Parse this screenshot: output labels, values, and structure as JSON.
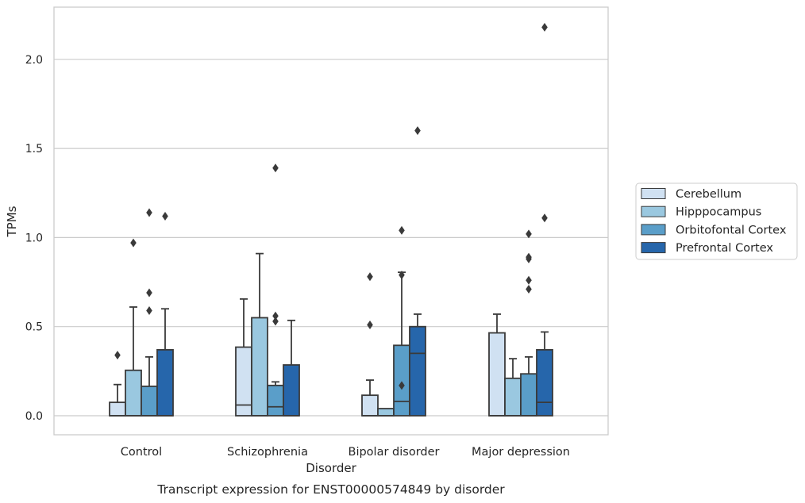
{
  "chart_data": {
    "type": "box",
    "title": "",
    "caption": "Transcript expression for ENST00000574849 by disorder",
    "xlabel": "Disorder",
    "ylabel": "TPMs",
    "ylim": [
      -0.105,
      2.3
    ],
    "yticks": [
      {
        "value": 0.0,
        "label": "0.0"
      },
      {
        "value": 0.5,
        "label": "0.5"
      },
      {
        "value": 1.0,
        "label": "1.0"
      },
      {
        "value": 1.5,
        "label": "1.5"
      },
      {
        "value": 2.0,
        "label": "2.0"
      }
    ],
    "grid": "horizontal",
    "legend_position": "right",
    "categories": [
      "Control",
      "Schizophrenia",
      "Bipolar disorder",
      "Major depression"
    ],
    "series": [
      {
        "name": "Cerebellum",
        "color": "#d0e1f2",
        "boxes": [
          {
            "whisker_low": 0.0,
            "q1": 0.0,
            "median": 0.0,
            "q3": 0.075,
            "whisker_high": 0.175,
            "outliers": [
              0.34
            ]
          },
          {
            "whisker_low": 0.0,
            "q1": 0.0,
            "median": 0.06,
            "q3": 0.385,
            "whisker_high": 0.655,
            "outliers": []
          },
          {
            "whisker_low": 0.0,
            "q1": 0.0,
            "median": 0.0,
            "q3": 0.115,
            "whisker_high": 0.2,
            "outliers": [
              0.51,
              0.78
            ]
          },
          {
            "whisker_low": 0.0,
            "q1": 0.0,
            "median": 0.0,
            "q3": 0.465,
            "whisker_high": 0.57,
            "outliers": []
          }
        ]
      },
      {
        "name": "Hipppocampus",
        "color": "#9ac8e0",
        "boxes": [
          {
            "whisker_low": 0.0,
            "q1": 0.0,
            "median": 0.0,
            "q3": 0.255,
            "whisker_high": 0.61,
            "outliers": [
              0.97
            ]
          },
          {
            "whisker_low": 0.0,
            "q1": 0.0,
            "median": 0.0,
            "q3": 0.55,
            "whisker_high": 0.91,
            "outliers": []
          },
          {
            "whisker_low": 0.0,
            "q1": 0.0,
            "median": 0.0,
            "q3": 0.04,
            "whisker_high": 0.04,
            "outliers": []
          },
          {
            "whisker_low": 0.0,
            "q1": 0.0,
            "median": 0.0,
            "q3": 0.21,
            "whisker_high": 0.32,
            "outliers": []
          }
        ]
      },
      {
        "name": "Orbitofontal Cortex",
        "color": "#5a9ec9",
        "boxes": [
          {
            "whisker_low": 0.0,
            "q1": 0.0,
            "median": 0.0,
            "q3": 0.165,
            "whisker_high": 0.33,
            "outliers": [
              0.59,
              0.69,
              1.14
            ]
          },
          {
            "whisker_low": 0.0,
            "q1": 0.0,
            "median": 0.05,
            "q3": 0.17,
            "whisker_high": 0.19,
            "outliers": [
              0.53,
              0.56,
              1.39
            ]
          },
          {
            "whisker_low": 0.0,
            "q1": 0.0,
            "median": 0.08,
            "q3": 0.395,
            "whisker_high": 0.805,
            "outliers": [
              0.17,
              0.79,
              1.04
            ]
          },
          {
            "whisker_low": 0.0,
            "q1": 0.0,
            "median": 0.0,
            "q3": 0.235,
            "whisker_high": 0.33,
            "outliers": [
              0.71,
              0.76,
              0.88,
              0.89,
              1.02
            ]
          }
        ]
      },
      {
        "name": "Prefrontal Cortex",
        "color": "#2666ab",
        "boxes": [
          {
            "whisker_low": 0.0,
            "q1": 0.0,
            "median": 0.0,
            "q3": 0.37,
            "whisker_high": 0.6,
            "outliers": [
              1.12
            ]
          },
          {
            "whisker_low": 0.0,
            "q1": 0.0,
            "median": 0.0,
            "q3": 0.285,
            "whisker_high": 0.535,
            "outliers": []
          },
          {
            "whisker_low": 0.0,
            "q1": 0.0,
            "median": 0.35,
            "q3": 0.5,
            "whisker_high": 0.57,
            "outliers": [
              1.6
            ]
          },
          {
            "whisker_low": 0.0,
            "q1": 0.0,
            "median": 0.075,
            "q3": 0.37,
            "whisker_high": 0.47,
            "outliers": [
              1.11,
              2.18
            ]
          }
        ]
      }
    ]
  }
}
